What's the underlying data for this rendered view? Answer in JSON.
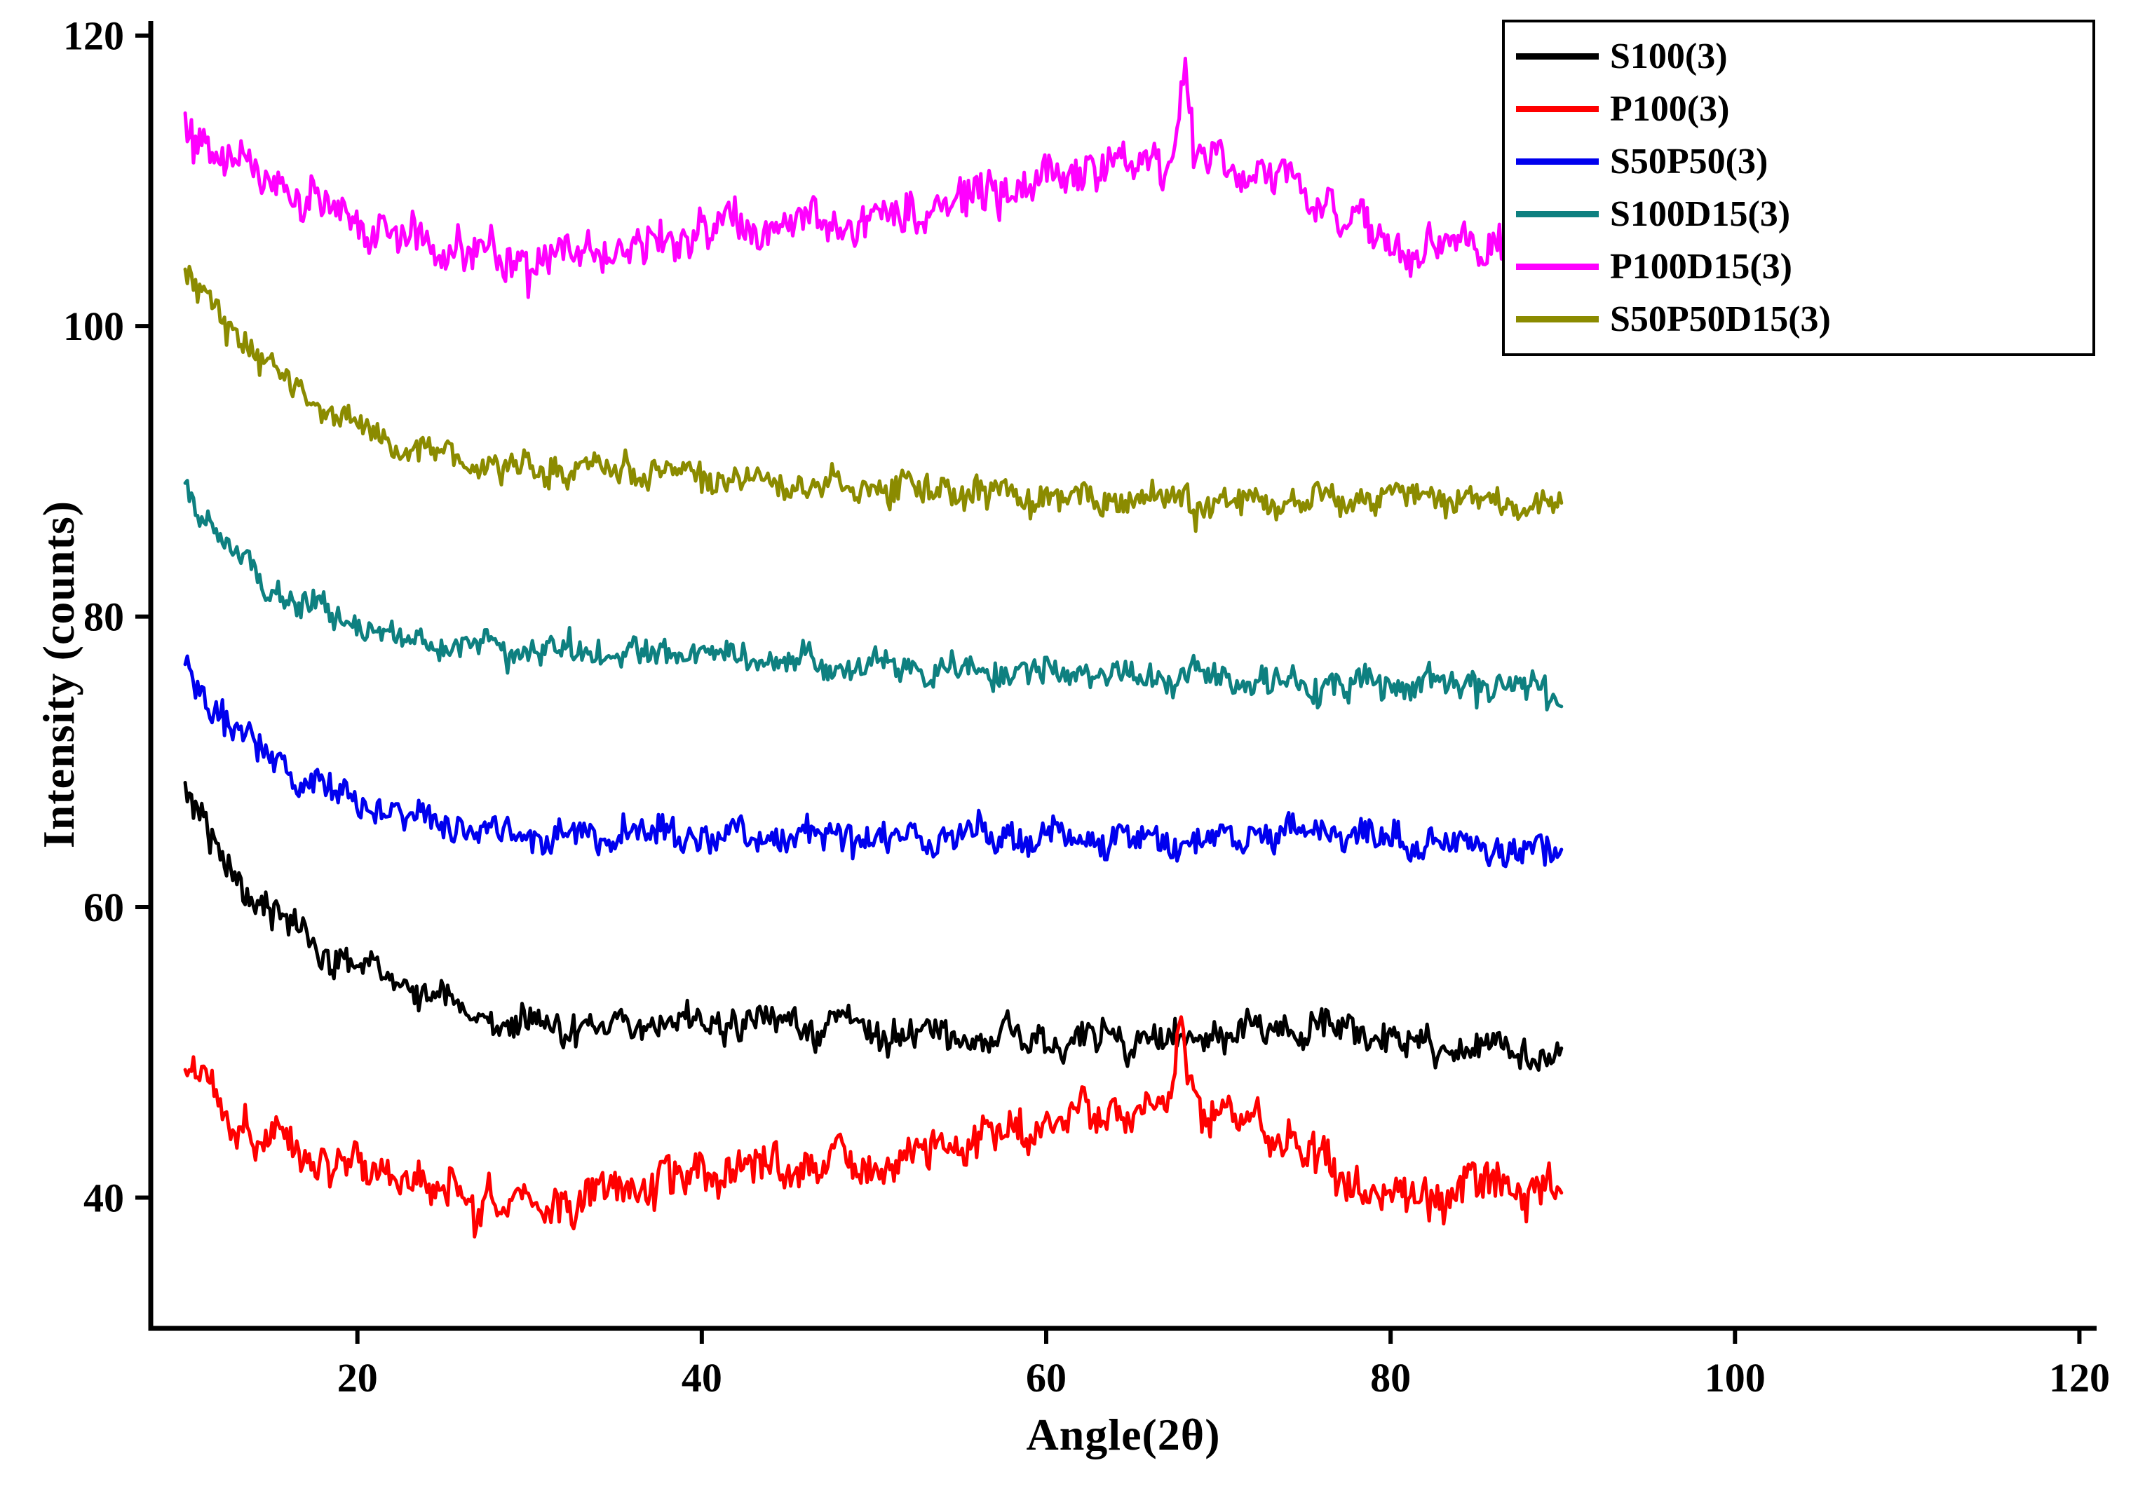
{
  "chart_data": {
    "type": "line",
    "title": "",
    "xlabel": "Angle(2θ)",
    "ylabel": "Intensity (counts)",
    "xlim": [
      8,
      121
    ],
    "ylim": [
      31,
      121
    ],
    "x_ticks": [
      20,
      40,
      60,
      80,
      100,
      120
    ],
    "y_ticks": [
      40,
      60,
      80,
      100,
      120
    ],
    "data_x_range": [
      10,
      90
    ],
    "grid": false,
    "legend_position": "top-right",
    "background": "#ffffff",
    "axis_color": "#000000",
    "sample_step": 0.12,
    "series": [
      {
        "name": "S100(3)",
        "color": "#000000",
        "noise_amp": 1.15,
        "spikes": [],
        "anchors": [
          [
            10,
            68.5
          ],
          [
            11,
            65.5
          ],
          [
            13,
            62
          ],
          [
            15,
            59.5
          ],
          [
            17,
            58
          ],
          [
            19,
            56.5
          ],
          [
            21,
            55.5
          ],
          [
            23,
            54.5
          ],
          [
            25,
            53.5
          ],
          [
            27,
            52.5
          ],
          [
            29,
            51.8
          ],
          [
            32,
            51.5
          ],
          [
            36,
            51.8
          ],
          [
            40,
            52.2
          ],
          [
            44,
            52
          ],
          [
            48,
            51.8
          ],
          [
            52,
            51.3
          ],
          [
            56,
            51
          ],
          [
            60,
            50.8
          ],
          [
            64,
            51
          ],
          [
            68,
            51
          ],
          [
            72,
            51.5
          ],
          [
            76,
            51.8
          ],
          [
            78,
            51.5
          ],
          [
            80,
            51
          ],
          [
            83,
            50.5
          ],
          [
            86,
            50.2
          ],
          [
            88,
            49.8
          ],
          [
            90,
            49.5
          ]
        ]
      },
      {
        "name": "P100(3)",
        "color": "#ff0000",
        "noise_amp": 1.5,
        "spikes": [
          {
            "center": 67.8,
            "amp": 5,
            "width": 0.3
          }
        ],
        "anchors": [
          [
            10,
            49.5
          ],
          [
            11,
            48
          ],
          [
            13,
            45.5
          ],
          [
            15,
            44
          ],
          [
            17,
            43
          ],
          [
            19,
            42.3
          ],
          [
            21,
            41.5
          ],
          [
            23,
            41
          ],
          [
            25,
            40.3
          ],
          [
            27,
            39.6
          ],
          [
            29,
            39.2
          ],
          [
            31,
            39.5
          ],
          [
            34,
            40.2
          ],
          [
            37,
            40.8
          ],
          [
            40,
            41.5
          ],
          [
            43,
            42
          ],
          [
            46,
            42.3
          ],
          [
            49,
            42.3
          ],
          [
            52,
            42.8
          ],
          [
            55,
            43.5
          ],
          [
            58,
            44.5
          ],
          [
            61,
            45.3
          ],
          [
            63,
            45.8
          ],
          [
            65,
            46
          ],
          [
            67,
            46.3
          ],
          [
            68,
            47
          ],
          [
            69,
            46.8
          ],
          [
            70,
            46.2
          ],
          [
            72,
            45
          ],
          [
            74,
            43.8
          ],
          [
            76,
            42.3
          ],
          [
            78,
            40.8
          ],
          [
            80,
            39.8
          ],
          [
            82,
            40
          ],
          [
            84,
            40.8
          ],
          [
            86,
            40.8
          ],
          [
            88,
            40.5
          ],
          [
            90,
            41
          ]
        ]
      },
      {
        "name": "S50P50(3)",
        "color": "#0000ee",
        "noise_amp": 1.1,
        "spikes": [],
        "anchors": [
          [
            10,
            77
          ],
          [
            11,
            74.5
          ],
          [
            13,
            72
          ],
          [
            15,
            70
          ],
          [
            17,
            68.8
          ],
          [
            19,
            67.8
          ],
          [
            21,
            67
          ],
          [
            23,
            66.3
          ],
          [
            25,
            65.8
          ],
          [
            27,
            65.3
          ],
          [
            30,
            65
          ],
          [
            34,
            64.8
          ],
          [
            38,
            65
          ],
          [
            42,
            65
          ],
          [
            46,
            64.8
          ],
          [
            50,
            64.8
          ],
          [
            54,
            64.8
          ],
          [
            58,
            65
          ],
          [
            62,
            64.8
          ],
          [
            66,
            64.5
          ],
          [
            70,
            64.5
          ],
          [
            73,
            65
          ],
          [
            76,
            65.3
          ],
          [
            79,
            64.8
          ],
          [
            82,
            64.3
          ],
          [
            85,
            64
          ],
          [
            88,
            63.8
          ],
          [
            90,
            63.5
          ]
        ]
      },
      {
        "name": "S100D15(3)",
        "color": "#0e8080",
        "noise_amp": 1.05,
        "spikes": [],
        "anchors": [
          [
            10,
            89.5
          ],
          [
            11,
            87
          ],
          [
            13,
            84
          ],
          [
            15,
            82
          ],
          [
            17,
            80.8
          ],
          [
            19,
            79.8
          ],
          [
            21,
            79
          ],
          [
            23,
            78.5
          ],
          [
            25,
            78
          ],
          [
            28,
            77.8
          ],
          [
            32,
            77.5
          ],
          [
            36,
            77.3
          ],
          [
            40,
            77.5
          ],
          [
            44,
            77
          ],
          [
            48,
            76.8
          ],
          [
            52,
            76.5
          ],
          [
            56,
            76.5
          ],
          [
            60,
            76.3
          ],
          [
            64,
            76
          ],
          [
            68,
            75.8
          ],
          [
            72,
            75.6
          ],
          [
            76,
            75.4
          ],
          [
            80,
            75.3
          ],
          [
            84,
            75.4
          ],
          [
            88,
            75.2
          ],
          [
            90,
            74.8
          ]
        ]
      },
      {
        "name": "P100D15(3)",
        "color": "#ff00ff",
        "noise_amp": 1.55,
        "spikes": [
          {
            "center": 68,
            "amp": 5.5,
            "width": 0.28
          }
        ],
        "anchors": [
          [
            10,
            114.5
          ],
          [
            11,
            113
          ],
          [
            13,
            111
          ],
          [
            15,
            109.8
          ],
          [
            17,
            108.8
          ],
          [
            19,
            107.8
          ],
          [
            21,
            106.8
          ],
          [
            23,
            106
          ],
          [
            25,
            105.3
          ],
          [
            27,
            104.8
          ],
          [
            30,
            104.5
          ],
          [
            33,
            104.8
          ],
          [
            36,
            105.3
          ],
          [
            39,
            106.3
          ],
          [
            42,
            106.8
          ],
          [
            45,
            107
          ],
          [
            48,
            107
          ],
          [
            51,
            107.5
          ],
          [
            54,
            108.3
          ],
          [
            57,
            109.3
          ],
          [
            60,
            110.3
          ],
          [
            62,
            110.8
          ],
          [
            64,
            111
          ],
          [
            66,
            111.3
          ],
          [
            68,
            111.8
          ],
          [
            70,
            111.5
          ],
          [
            72,
            110.8
          ],
          [
            74,
            110
          ],
          [
            76,
            108.8
          ],
          [
            78,
            107
          ],
          [
            80,
            105.8
          ],
          [
            82,
            105
          ],
          [
            84,
            105.5
          ],
          [
            86,
            106
          ],
          [
            88,
            106.3
          ],
          [
            90,
            106.8
          ]
        ]
      },
      {
        "name": "S50P50D15(3)",
        "color": "#8b8b00",
        "noise_amp": 1.05,
        "spikes": [],
        "anchors": [
          [
            10,
            103.5
          ],
          [
            11,
            102
          ],
          [
            13,
            99.5
          ],
          [
            15,
            97
          ],
          [
            17,
            95.3
          ],
          [
            19,
            93.8
          ],
          [
            21,
            92.5
          ],
          [
            23,
            91.8
          ],
          [
            25,
            91
          ],
          [
            27,
            90.5
          ],
          [
            30,
            90
          ],
          [
            33,
            90.2
          ],
          [
            36,
            90
          ],
          [
            39,
            89.8
          ],
          [
            42,
            89.5
          ],
          [
            45,
            89.3
          ],
          [
            48,
            89
          ],
          [
            51,
            88.8
          ],
          [
            54,
            88.6
          ],
          [
            57,
            88.4
          ],
          [
            60,
            88.2
          ],
          [
            64,
            88
          ],
          [
            68,
            87.9
          ],
          [
            72,
            87.8
          ],
          [
            75,
            88
          ],
          [
            78,
            88.2
          ],
          [
            81,
            88.3
          ],
          [
            84,
            87.9
          ],
          [
            87,
            87.7
          ],
          [
            90,
            87.5
          ]
        ]
      }
    ]
  }
}
